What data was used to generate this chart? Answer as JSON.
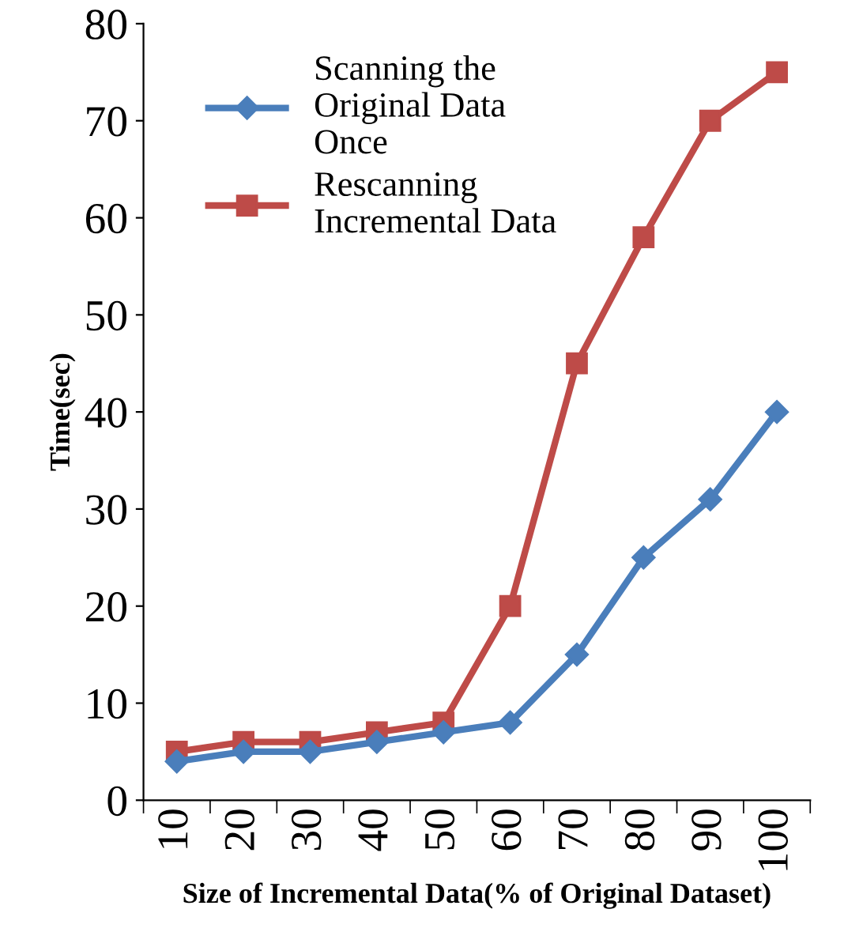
{
  "chart_data": {
    "type": "line",
    "xlabel": "Size of Incremental Data(% of Original Dataset)",
    "ylabel": "Time(sec)",
    "categories": [
      "10",
      "20",
      "30",
      "40",
      "50",
      "60",
      "70",
      "80",
      "90",
      "100"
    ],
    "ylim": [
      0,
      80
    ],
    "yticks": [
      0,
      10,
      20,
      30,
      40,
      50,
      60,
      70,
      80
    ],
    "grid": false,
    "legend": "top left",
    "line_style": "solid",
    "series": [
      {
        "name": "Scanning the\nOriginal Data\nOnce",
        "color": "#4a7ebb",
        "marker": "diamond",
        "values": [
          4,
          5,
          5,
          6,
          7,
          8,
          15,
          25,
          31,
          40
        ]
      },
      {
        "name": "Rescanning\nIncremental Data",
        "color": "#be4b48",
        "marker": "square",
        "values": [
          5,
          6,
          6,
          7,
          8,
          20,
          45,
          58,
          70,
          75
        ]
      }
    ]
  }
}
